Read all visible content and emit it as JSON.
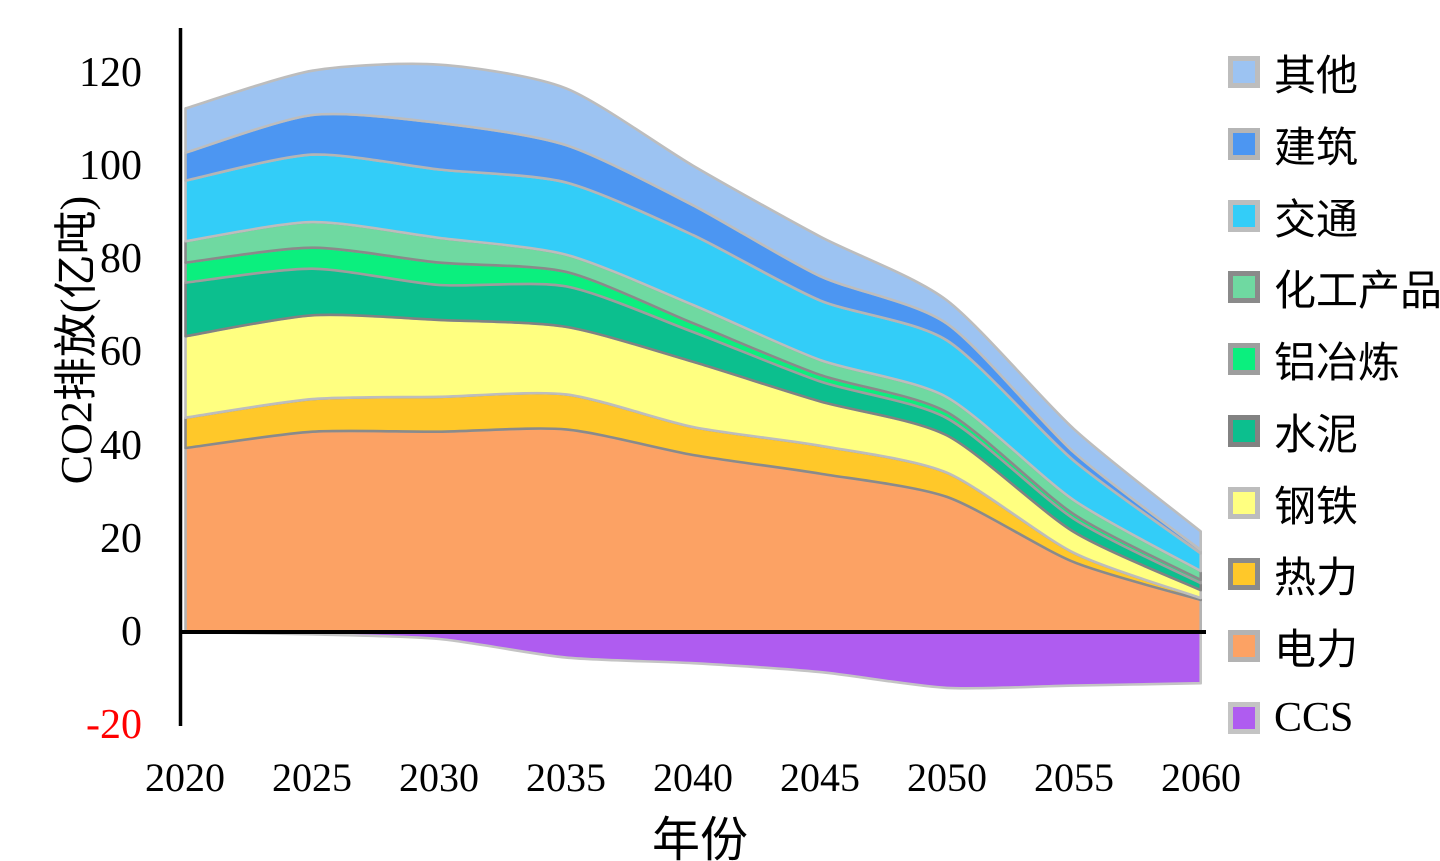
{
  "chart_data": {
    "type": "area",
    "subtype": "stacked-area-with-negative-band",
    "title": "",
    "xlabel": "年份",
    "ylabel": "CO2排放(亿吨)",
    "x": [
      2020,
      2025,
      2030,
      2035,
      2040,
      2045,
      2050,
      2055,
      2060
    ],
    "x_tick_labels": [
      "2020",
      "2025",
      "2030",
      "2035",
      "2040",
      "2045",
      "2050",
      "2055",
      "2060"
    ],
    "y_tick_labels": [
      "120",
      "100",
      "80",
      "60",
      "40",
      "20",
      "0",
      "-20"
    ],
    "y_tick_values": [
      120,
      100,
      80,
      60,
      40,
      20,
      0,
      -20
    ],
    "ylim": [
      -20,
      130
    ],
    "grid": "off",
    "legend_position": "right",
    "negative_tick_color": "#ff0000",
    "axis_color": "#000000",
    "unit": "亿吨",
    "series_stack_bottom_to_top": [
      {
        "name": "电力",
        "color": "#FCA264",
        "stroke": "#b3b3b3",
        "values": [
          39.5,
          43,
          43,
          43.5,
          38,
          34,
          29,
          15,
          6.9
        ]
      },
      {
        "name": "热力",
        "color": "#FFC829",
        "stroke": "#8a8a8a",
        "values": [
          6.5,
          7,
          7.5,
          7.5,
          6,
          6,
          5.2,
          2,
          0.4
        ]
      },
      {
        "name": "钢铁",
        "color": "#FFFF80",
        "stroke": "#bdbdbd",
        "values": [
          17.5,
          18,
          16.5,
          14.5,
          14,
          9.5,
          8,
          4.5,
          1.7
        ]
      },
      {
        "name": "水泥",
        "color": "#0CBF8E",
        "stroke": "#828282",
        "values": [
          11.5,
          10,
          7.5,
          8.7,
          6.4,
          4.3,
          3.7,
          2.8,
          1.5
        ]
      },
      {
        "name": "铝冶炼",
        "color": "#0BEF7E",
        "stroke": "#9e9e9e",
        "values": [
          4.3,
          4.5,
          4.8,
          3.1,
          1.9,
          1.4,
          1.3,
          1,
          0.7
        ]
      },
      {
        "name": "化工产品",
        "color": "#6FD9A1",
        "stroke": "#8a8a8a",
        "values": [
          4.6,
          5.5,
          5.3,
          3.7,
          3.9,
          3.2,
          3.2,
          3,
          1.9
        ]
      },
      {
        "name": "交通",
        "color": "#33CDF8",
        "stroke": "#bdbdbd",
        "values": [
          13,
          14.5,
          14.7,
          15.5,
          15,
          12.8,
          12.2,
          8.5,
          3.8
        ]
      },
      {
        "name": "建筑",
        "color": "#4C96F2",
        "stroke": "#b5b5b5",
        "values": [
          6,
          8.5,
          10,
          8,
          6.4,
          5.2,
          3.6,
          1.8,
          0.7
        ]
      },
      {
        "name": "其他",
        "color": "#9CC3F2",
        "stroke": "#bdbdbd",
        "values": [
          9.5,
          9.5,
          12.5,
          12.2,
          8.5,
          8.5,
          5,
          5,
          4
        ]
      }
    ],
    "negative_series": {
      "name": "CCS",
      "color": "#AF5CF0",
      "stroke": "#c4c4c4",
      "values": [
        0,
        -0.5,
        -1.5,
        -5.5,
        -6.7,
        -8.6,
        -12,
        -11.5,
        -11
      ]
    },
    "legend": [
      {
        "label": "其他",
        "color": "#9CC3F2",
        "border": "#bdbdbd"
      },
      {
        "label": "建筑",
        "color": "#4C96F2",
        "border": "#b5b5b5"
      },
      {
        "label": "交通",
        "color": "#33CDF8",
        "border": "#bdbdbd"
      },
      {
        "label": "化工产品",
        "color": "#6FD9A1",
        "border": "#8a8a8a"
      },
      {
        "label": "铝冶炼",
        "color": "#0BEF7E",
        "border": "#9e9e9e"
      },
      {
        "label": "水泥",
        "color": "#0CBF8E",
        "border": "#828282"
      },
      {
        "label": "钢铁",
        "color": "#FFFF80",
        "border": "#bdbdbd"
      },
      {
        "label": "热力",
        "color": "#FFC829",
        "border": "#8a8a8a"
      },
      {
        "label": "电力",
        "color": "#FCA264",
        "border": "#b3b3b3"
      },
      {
        "label": "CCS",
        "color": "#AF5CF0",
        "border": "#c4c4c4"
      }
    ]
  }
}
